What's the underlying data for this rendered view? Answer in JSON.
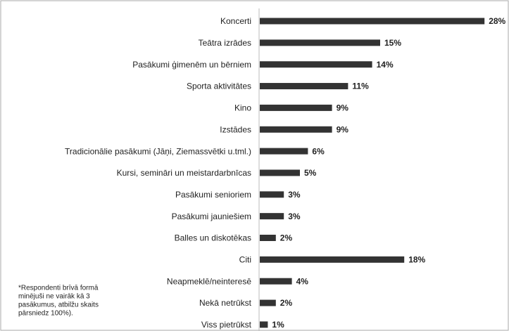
{
  "chart_data": {
    "type": "bar",
    "orientation": "horizontal",
    "categories": [
      "Koncerti",
      "Teātra izrādes",
      "Pasākumi ģimenēm un bērniem",
      "Sporta aktivitātes",
      "Kino",
      "Izstādes",
      "Tradicionālie pasākumi (Jāņi, Ziemassvētki u.tml.)",
      "Kursi, semināri un meistardarbnīcas",
      "Pasākumi senioriem",
      "Pasākumi jauniešiem",
      "Balles un diskotēkas",
      "Citi",
      "Neapmeklē/neinteresē",
      "Nekā netrūkst",
      "Viss pietrūkst"
    ],
    "values": [
      28,
      15,
      14,
      11,
      9,
      9,
      6,
      5,
      3,
      3,
      2,
      18,
      4,
      2,
      1
    ],
    "value_labels": [
      "28%",
      "15%",
      "14%",
      "11%",
      "9%",
      "9%",
      "6%",
      "5%",
      "3%",
      "3%",
      "2%",
      "18%",
      "4%",
      "2%",
      "1%"
    ],
    "color": "#333333",
    "footnote": [
      "*Respondenti brīvā formā",
      "minējuši ne vairāk kā 3",
      "pasākumus, atbilžu skaits",
      "pārsniedz 100%)."
    ]
  }
}
